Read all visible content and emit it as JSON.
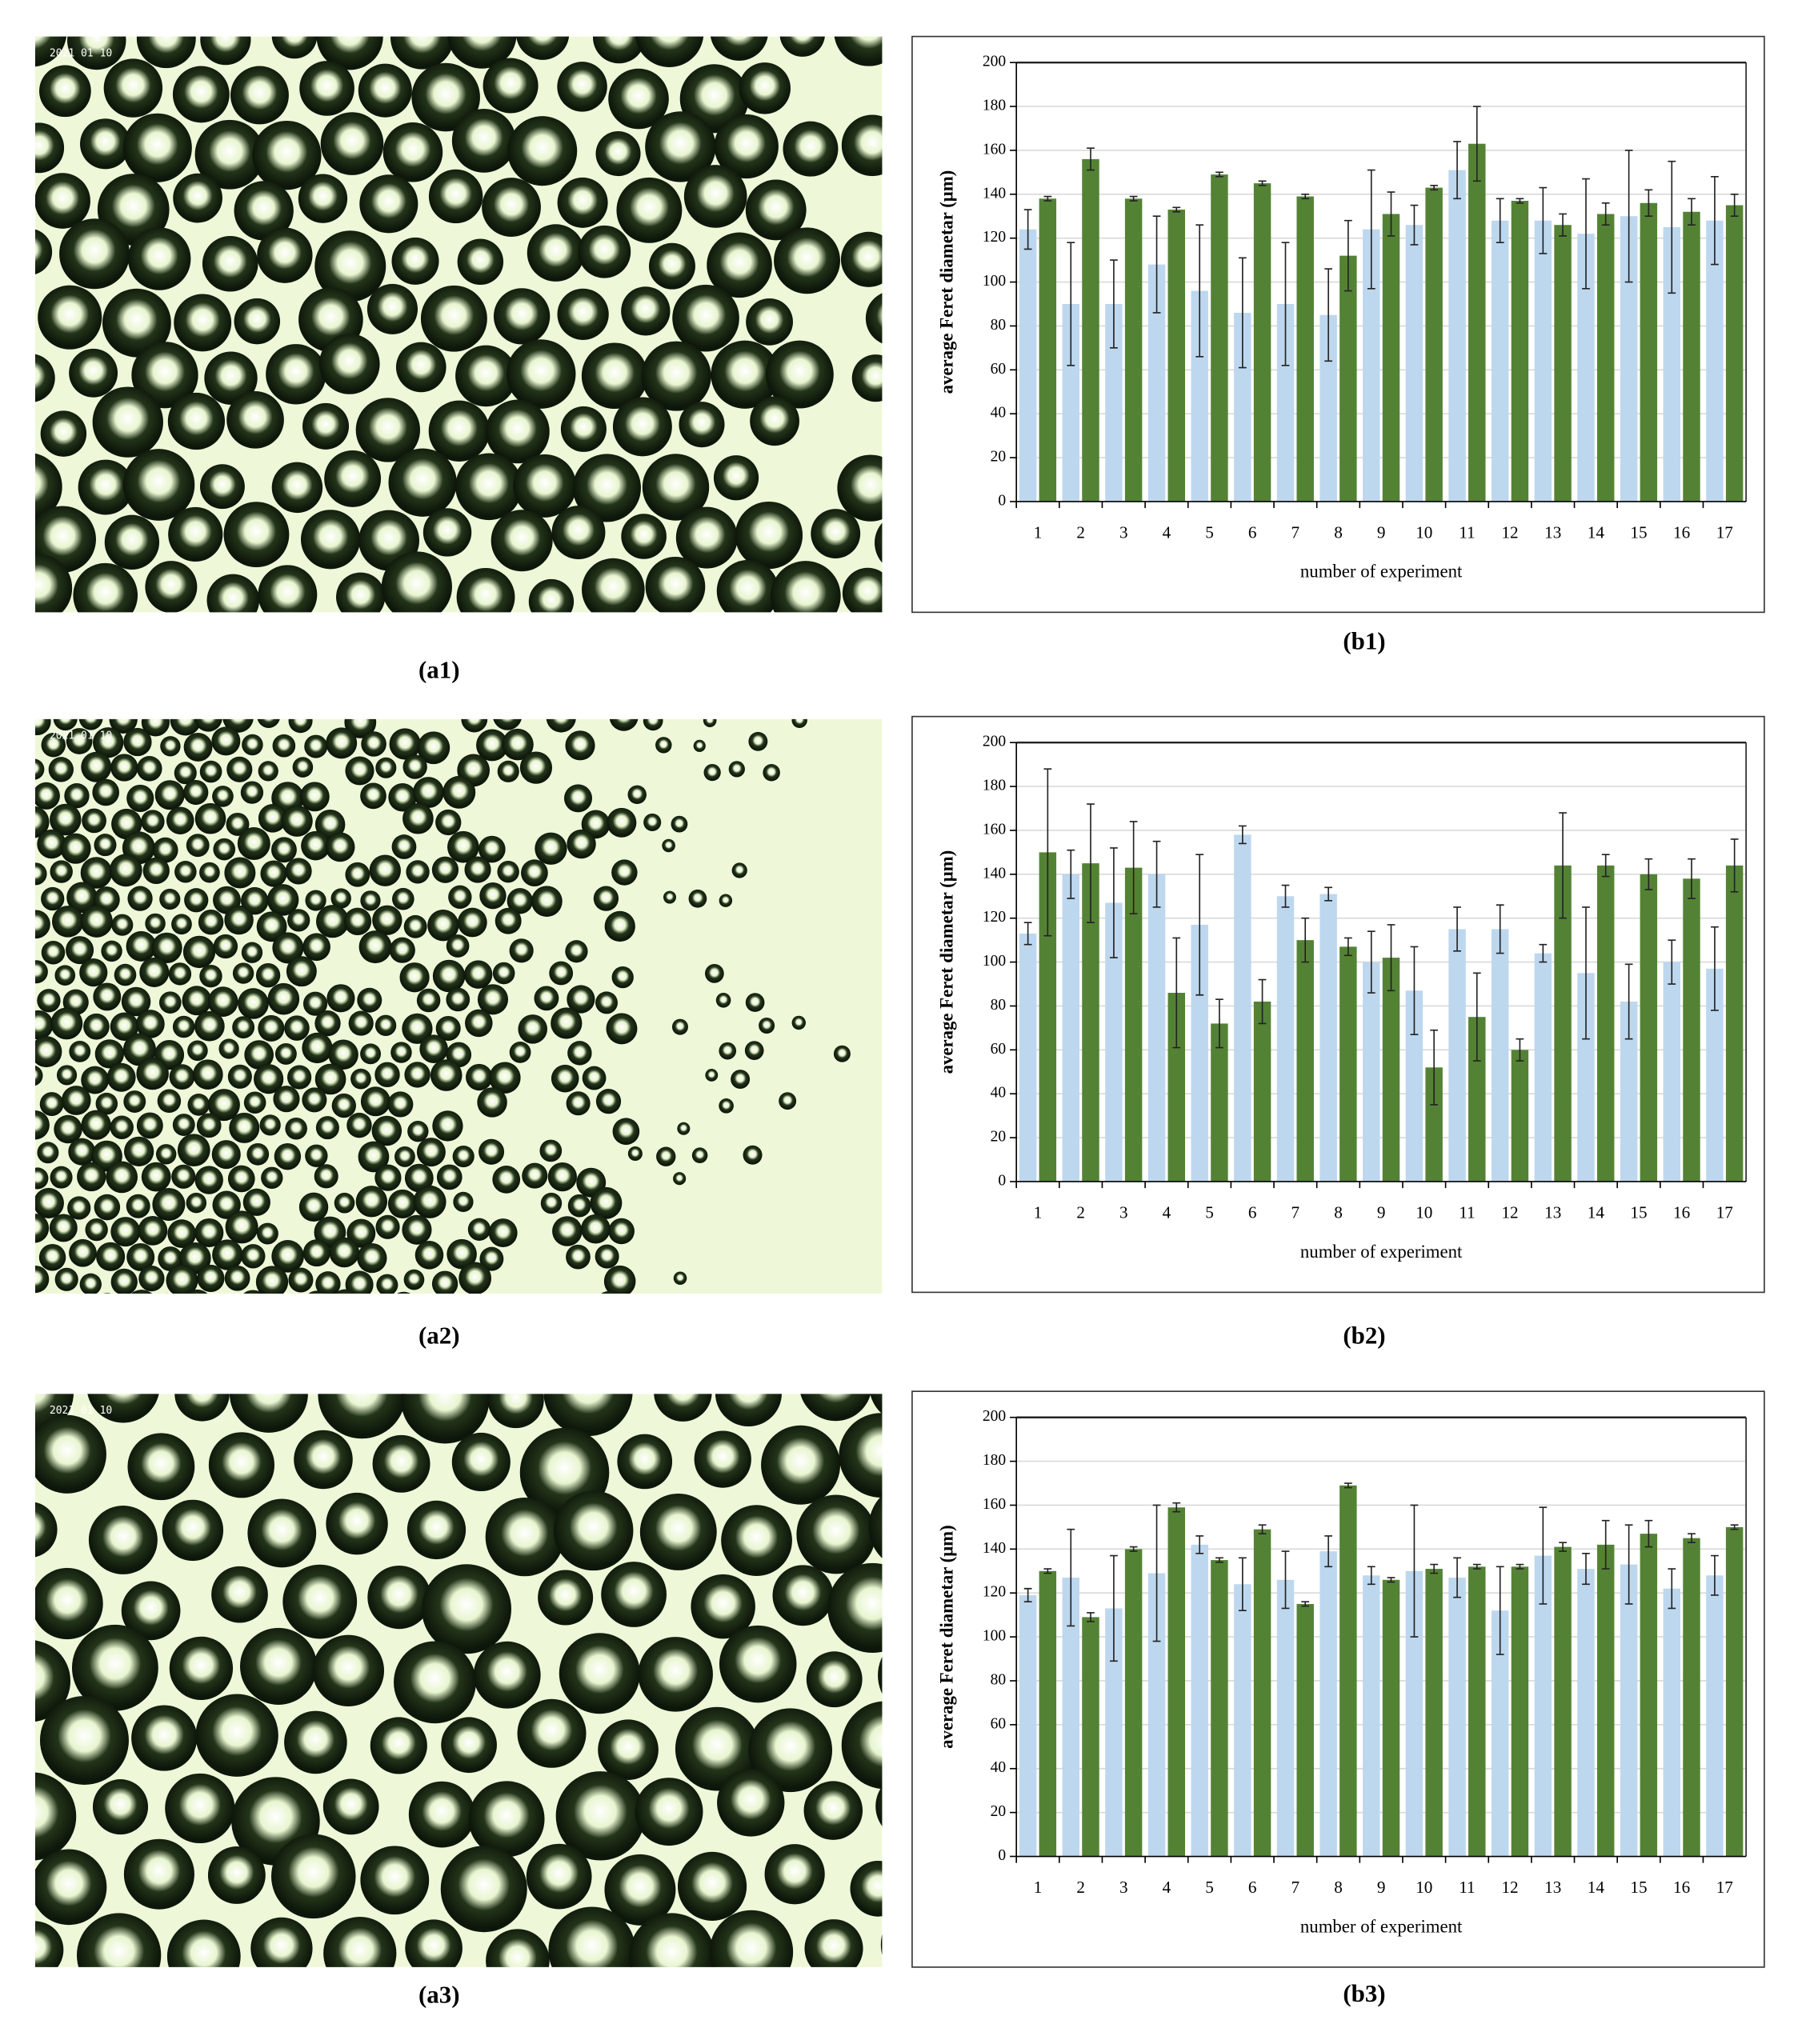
{
  "images": [
    {
      "caption": "(a1)",
      "stamp": "2021 01 10"
    },
    {
      "caption": "(a2)",
      "stamp": "2021 01 10"
    },
    {
      "caption": "(a3)",
      "stamp": "2021 01 10"
    }
  ],
  "chart_data": [
    {
      "type": "bar",
      "caption": "(b1)",
      "ylabel": "average Feret diametar (μm)",
      "xlabel": "number of experiment",
      "categories": [
        "1",
        "2",
        "3",
        "4",
        "5",
        "6",
        "7",
        "8",
        "9",
        "10",
        "11",
        "12",
        "13",
        "14",
        "15",
        "16",
        "17"
      ],
      "ylim": [
        0,
        200
      ],
      "yticks": [
        0,
        20,
        40,
        60,
        80,
        100,
        120,
        140,
        160,
        180,
        200
      ],
      "grid": true,
      "series": [
        {
          "color": "#bdd7ee",
          "values": [
            124,
            90,
            90,
            108,
            96,
            86,
            90,
            85,
            124,
            126,
            151,
            128,
            128,
            122,
            130,
            125,
            128
          ],
          "errors": [
            9,
            28,
            20,
            22,
            30,
            25,
            28,
            21,
            27,
            9,
            13,
            10,
            15,
            25,
            30,
            30,
            20
          ]
        },
        {
          "color": "#548235",
          "values": [
            138,
            156,
            138,
            133,
            149,
            145,
            139,
            112,
            131,
            143,
            163,
            137,
            126,
            131,
            136,
            132,
            135
          ],
          "errors": [
            1,
            5,
            1,
            1,
            1,
            1,
            1,
            16,
            10,
            1,
            17,
            1,
            5,
            5,
            6,
            6,
            5
          ]
        }
      ]
    },
    {
      "type": "bar",
      "caption": "(b2)",
      "ylabel": "average Feret diametar (μm)",
      "xlabel": "number of experiment",
      "categories": [
        "1",
        "2",
        "3",
        "4",
        "5",
        "6",
        "7",
        "8",
        "9",
        "10",
        "11",
        "12",
        "13",
        "14",
        "15",
        "16",
        "17"
      ],
      "ylim": [
        0,
        200
      ],
      "yticks": [
        0,
        20,
        40,
        60,
        80,
        100,
        120,
        140,
        160,
        180,
        200
      ],
      "grid": true,
      "series": [
        {
          "color": "#bdd7ee",
          "values": [
            113,
            140,
            127,
            140,
            117,
            158,
            130,
            131,
            100,
            87,
            115,
            115,
            104,
            95,
            82,
            100,
            97
          ],
          "errors": [
            5,
            11,
            25,
            15,
            32,
            4,
            5,
            3,
            14,
            20,
            10,
            11,
            4,
            30,
            17,
            10,
            19
          ]
        },
        {
          "color": "#548235",
          "values": [
            150,
            145,
            143,
            86,
            72,
            82,
            110,
            107,
            102,
            52,
            75,
            60,
            144,
            144,
            140,
            138,
            144
          ],
          "errors": [
            38,
            27,
            21,
            25,
            11,
            10,
            10,
            4,
            15,
            17,
            20,
            5,
            24,
            5,
            7,
            9,
            12
          ]
        }
      ]
    },
    {
      "type": "bar",
      "caption": "(b3)",
      "ylabel": "average Feret diametar (μm)",
      "xlabel": "number of experiment",
      "categories": [
        "1",
        "2",
        "3",
        "4",
        "5",
        "6",
        "7",
        "8",
        "9",
        "10",
        "11",
        "12",
        "13",
        "14",
        "15",
        "16",
        "17"
      ],
      "ylim": [
        0,
        200
      ],
      "yticks": [
        0,
        20,
        40,
        60,
        80,
        100,
        120,
        140,
        160,
        180,
        200
      ],
      "grid": true,
      "series": [
        {
          "color": "#bdd7ee",
          "values": [
            119,
            127,
            113,
            129,
            142,
            124,
            126,
            139,
            128,
            130,
            127,
            112,
            137,
            131,
            133,
            122,
            128
          ],
          "errors": [
            3,
            22,
            24,
            31,
            4,
            12,
            13,
            7,
            4,
            30,
            9,
            20,
            22,
            7,
            18,
            9,
            9
          ]
        },
        {
          "color": "#548235",
          "values": [
            130,
            109,
            140,
            159,
            135,
            149,
            115,
            169,
            126,
            131,
            132,
            132,
            141,
            142,
            147,
            145,
            150
          ],
          "errors": [
            1,
            2,
            1,
            2,
            1,
            2,
            1,
            1,
            1,
            2,
            1,
            1,
            2,
            11,
            6,
            2,
            1
          ]
        }
      ]
    }
  ]
}
